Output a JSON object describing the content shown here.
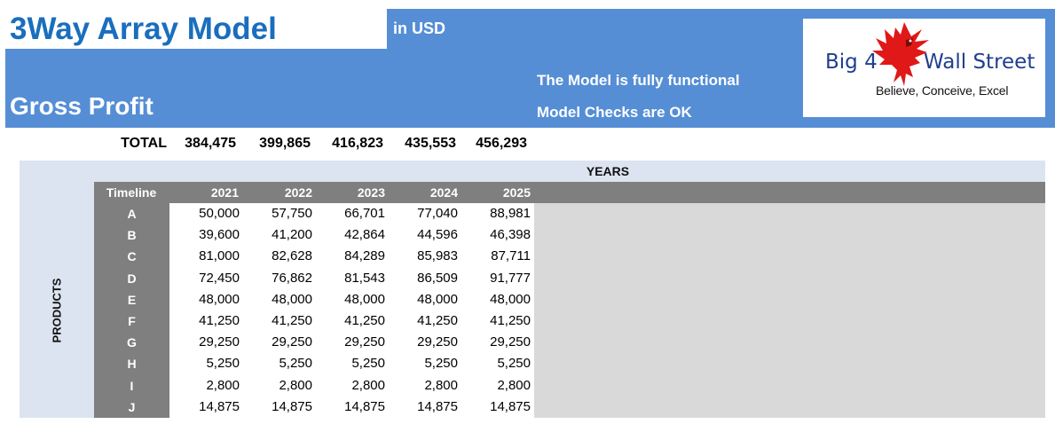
{
  "header": {
    "title": "3Way Array Model",
    "currency": "in USD",
    "section": "Gross Profit",
    "status_functional": "The Model is fully functional",
    "status_checks": "Model Checks are OK"
  },
  "logo": {
    "left_text": "Big 4",
    "right_text": "Wall Street",
    "tagline": "Believe, Conceive, Excel",
    "icon": "eagle-icon"
  },
  "totals": {
    "label": "TOTAL",
    "values": [
      "384,475",
      "399,865",
      "416,823",
      "435,553",
      "456,293"
    ]
  },
  "table": {
    "axis_top": "YEARS",
    "axis_side": "PRODUCTS",
    "timeline_label": "Timeline",
    "years": [
      "2021",
      "2022",
      "2023",
      "2024",
      "2025"
    ],
    "rows": [
      {
        "product": "A",
        "values": [
          "50,000",
          "57,750",
          "66,701",
          "77,040",
          "88,981"
        ]
      },
      {
        "product": "B",
        "values": [
          "39,600",
          "41,200",
          "42,864",
          "44,596",
          "46,398"
        ]
      },
      {
        "product": "C",
        "values": [
          "81,000",
          "82,628",
          "84,289",
          "85,983",
          "87,711"
        ]
      },
      {
        "product": "D",
        "values": [
          "72,450",
          "76,862",
          "81,543",
          "86,509",
          "91,777"
        ]
      },
      {
        "product": "E",
        "values": [
          "48,000",
          "48,000",
          "48,000",
          "48,000",
          "48,000"
        ]
      },
      {
        "product": "F",
        "values": [
          "41,250",
          "41,250",
          "41,250",
          "41,250",
          "41,250"
        ]
      },
      {
        "product": "G",
        "values": [
          "29,250",
          "29,250",
          "29,250",
          "29,250",
          "29,250"
        ]
      },
      {
        "product": "H",
        "values": [
          "5,250",
          "5,250",
          "5,250",
          "5,250",
          "5,250"
        ]
      },
      {
        "product": "I",
        "values": [
          "2,800",
          "2,800",
          "2,800",
          "2,800",
          "2,800"
        ]
      },
      {
        "product": "J",
        "values": [
          "14,875",
          "14,875",
          "14,875",
          "14,875",
          "14,875"
        ]
      }
    ]
  },
  "colors": {
    "header_blue": "#558ed5",
    "title_blue": "#1a6ebd",
    "table_bg": "#dce4f2",
    "header_grey": "#7f7f7f",
    "empty_grey": "#d9d9d9"
  }
}
